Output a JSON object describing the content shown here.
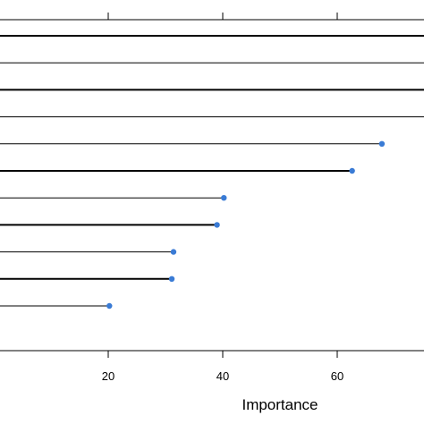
{
  "chart_data": {
    "type": "dot-line",
    "title": "",
    "xlabel": "Importance",
    "ylabel": "",
    "xlim": [
      2.5,
      77
    ],
    "x_ticks": [
      20,
      40,
      60
    ],
    "x_tick_labels": [
      "20",
      "40",
      "60"
    ],
    "top_ticks": [
      20,
      40,
      60
    ],
    "grid": false,
    "items": [
      {
        "value": 77,
        "dot": false,
        "bold": true
      },
      {
        "value": 77,
        "dot": false,
        "bold": false
      },
      {
        "value": 77,
        "dot": false,
        "bold": true
      },
      {
        "value": 77,
        "dot": false,
        "bold": false
      },
      {
        "value": 67.8,
        "dot": true,
        "bold": false
      },
      {
        "value": 62.6,
        "dot": true,
        "bold": true
      },
      {
        "value": 40.2,
        "dot": true,
        "bold": false
      },
      {
        "value": 39.0,
        "dot": true,
        "bold": true
      },
      {
        "value": 31.4,
        "dot": true,
        "bold": false
      },
      {
        "value": 31.1,
        "dot": true,
        "bold": true
      },
      {
        "value": 20.2,
        "dot": true,
        "bold": false
      }
    ],
    "colors": {
      "line": "#000000",
      "dot": "#3a7bd5",
      "axis": "#000000"
    }
  }
}
